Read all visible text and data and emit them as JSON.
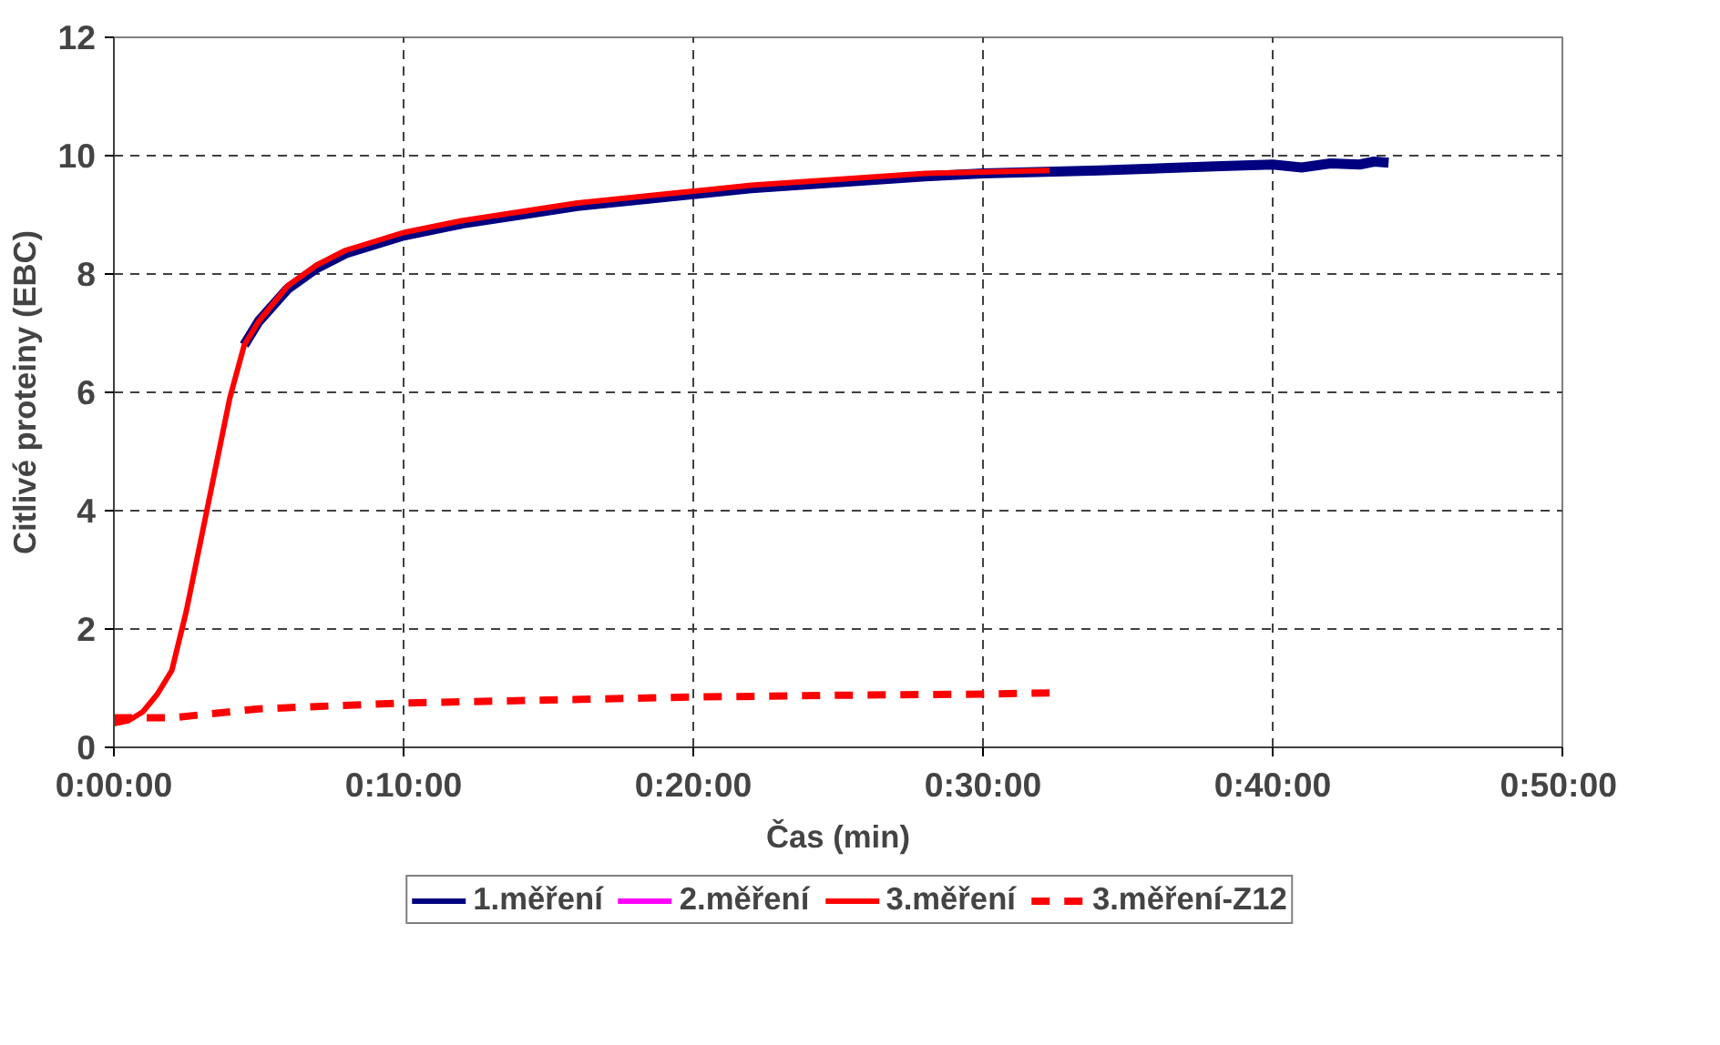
{
  "chart_data": {
    "type": "line",
    "xlabel": "Čas (min)",
    "ylabel": "Citlivé proteiny (EBC)",
    "xlim": [
      0,
      50
    ],
    "xticks": [
      {
        "value": 0,
        "label": "0:00:00"
      },
      {
        "value": 10,
        "label": "0:10:00"
      },
      {
        "value": 20,
        "label": "0:20:00"
      },
      {
        "value": 30,
        "label": "0:30:00"
      },
      {
        "value": 40,
        "label": "0:40:00"
      },
      {
        "value": 50,
        "label": "0:50:00"
      }
    ],
    "ylim": [
      0,
      12
    ],
    "yticks": [
      0,
      2,
      4,
      6,
      8,
      10,
      12
    ],
    "grid": true,
    "legend": "bottom",
    "line_style": "solid",
    "marker": "none",
    "series": [
      {
        "name": "1.měření",
        "color": "#000080",
        "x": [
          4.5,
          5,
          6,
          7,
          8,
          9,
          10,
          12,
          14,
          16,
          18,
          20,
          22,
          25,
          28,
          30,
          34,
          38,
          40,
          41,
          42,
          43,
          43.5,
          44
        ],
        "values": [
          6.8,
          7.2,
          7.75,
          8.1,
          8.35,
          8.5,
          8.65,
          8.85,
          9.0,
          9.15,
          9.25,
          9.35,
          9.45,
          9.55,
          9.65,
          9.7,
          9.75,
          9.82,
          9.85,
          9.8,
          9.87,
          9.85,
          9.9,
          9.88
        ]
      },
      {
        "name": "2.měření",
        "color": "#ff00ff"
      },
      {
        "name": "3.měření",
        "color": "#ff0000",
        "x": [
          0,
          0.5,
          1,
          1.5,
          2,
          2.5,
          3,
          3.5,
          4,
          4.5,
          5,
          6,
          7,
          8,
          9,
          10,
          12,
          14,
          16,
          18,
          20,
          22,
          25,
          28,
          32.3
        ],
        "values": [
          0.4,
          0.45,
          0.6,
          0.9,
          1.3,
          2.3,
          3.5,
          4.7,
          5.9,
          6.8,
          7.2,
          7.8,
          8.15,
          8.4,
          8.55,
          8.7,
          8.9,
          9.05,
          9.2,
          9.3,
          9.4,
          9.5,
          9.6,
          9.7,
          9.75
        ]
      },
      {
        "name": "3.měření-Z12",
        "color": "#ff0000",
        "line_style": "dashed",
        "x": [
          0,
          2,
          5,
          10,
          15,
          20,
          25,
          30,
          32.3
        ],
        "values": [
          0.5,
          0.5,
          0.65,
          0.75,
          0.8,
          0.85,
          0.88,
          0.9,
          0.92
        ]
      }
    ]
  }
}
